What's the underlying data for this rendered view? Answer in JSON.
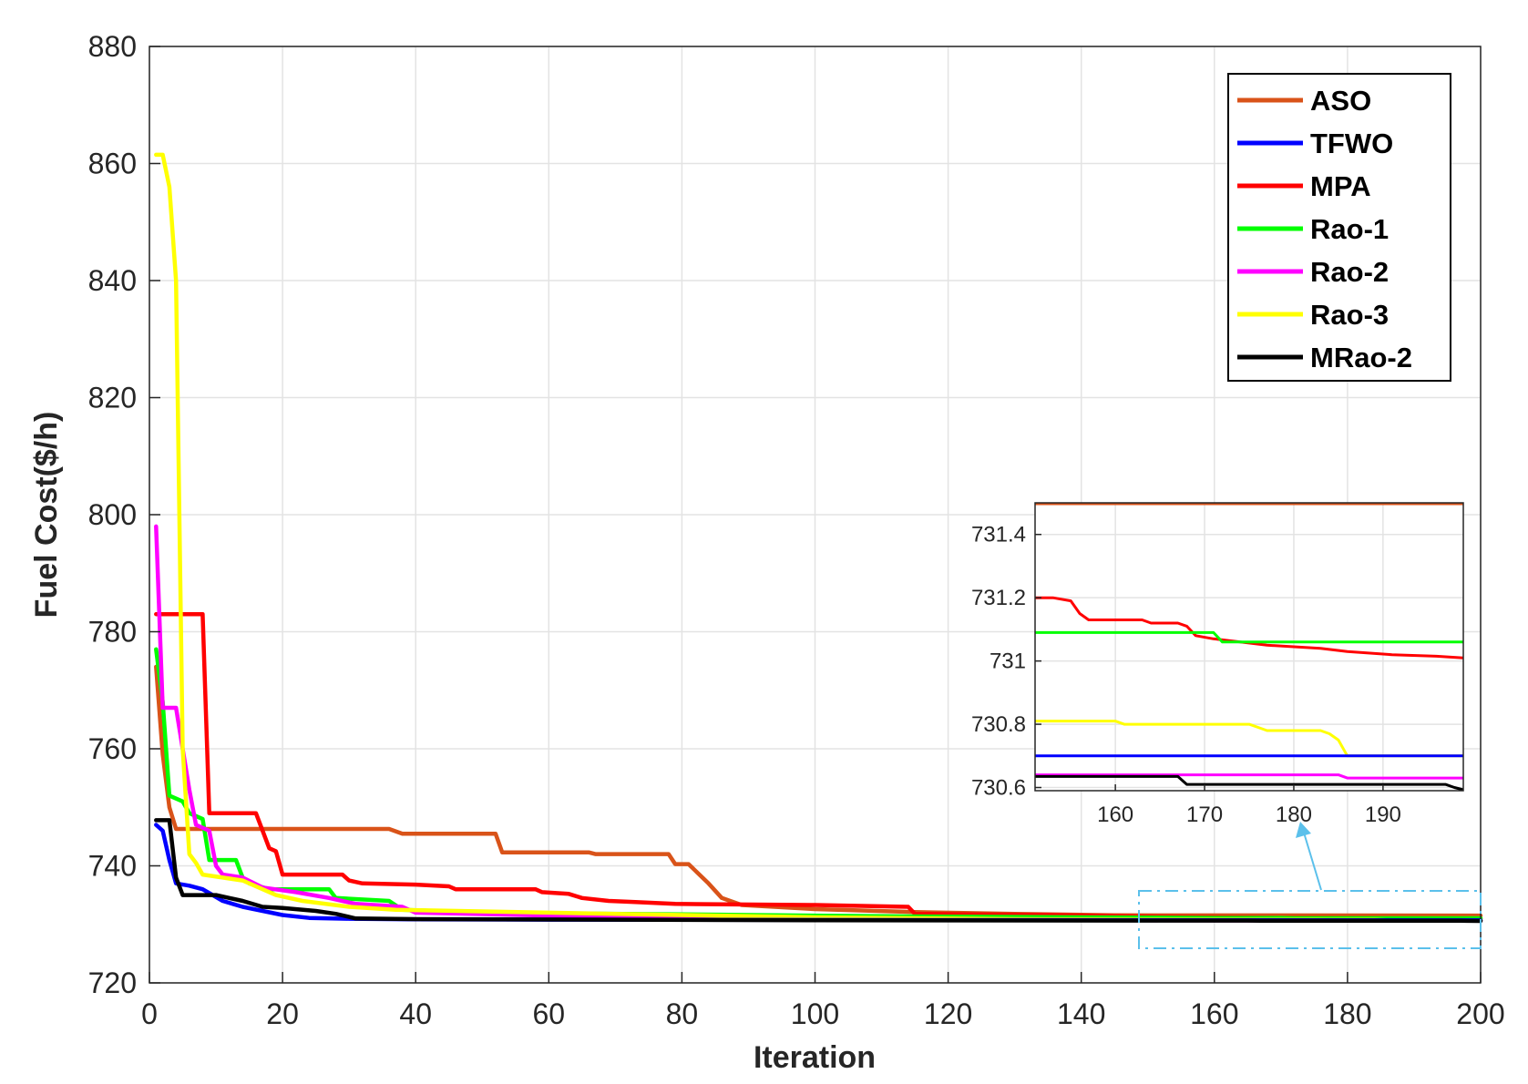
{
  "chart_data": {
    "type": "line",
    "xlabel": "Iteration",
    "ylabel": "Fuel Cost($/h)",
    "xlim": [
      0,
      200
    ],
    "ylim": [
      720,
      880
    ],
    "xticks": [
      0,
      20,
      40,
      60,
      80,
      100,
      120,
      140,
      160,
      180,
      200
    ],
    "yticks": [
      720,
      740,
      760,
      780,
      800,
      820,
      840,
      860,
      880
    ],
    "grid": true,
    "legend_position": "top-right",
    "series": [
      {
        "name": "ASO",
        "color": "#d95319",
        "points": [
          [
            1,
            774
          ],
          [
            2,
            759
          ],
          [
            3,
            750
          ],
          [
            4,
            746.3
          ],
          [
            20,
            746.3
          ],
          [
            36,
            746.3
          ],
          [
            38,
            745.5
          ],
          [
            52,
            745.5
          ],
          [
            53,
            742.3
          ],
          [
            66,
            742.3
          ],
          [
            67,
            742
          ],
          [
            78,
            742
          ],
          [
            79,
            740.3
          ],
          [
            81,
            740.3
          ],
          [
            84,
            737
          ],
          [
            86,
            734.5
          ],
          [
            89,
            733.3
          ],
          [
            100,
            732.6
          ],
          [
            115,
            732.1
          ],
          [
            130,
            731.8
          ],
          [
            145,
            731.55
          ],
          [
            200,
            731.5
          ]
        ]
      },
      {
        "name": "TFWO",
        "color": "#0000ff",
        "points": [
          [
            1,
            747
          ],
          [
            2,
            746
          ],
          [
            3,
            741
          ],
          [
            4,
            737
          ],
          [
            6,
            736.6
          ],
          [
            8,
            736
          ],
          [
            11,
            734
          ],
          [
            14,
            733
          ],
          [
            17,
            732.3
          ],
          [
            20,
            731.6
          ],
          [
            24,
            731.1
          ],
          [
            30,
            730.95
          ],
          [
            40,
            730.85
          ],
          [
            60,
            730.8
          ],
          [
            100,
            730.75
          ],
          [
            150,
            730.72
          ],
          [
            200,
            730.7
          ]
        ]
      },
      {
        "name": "MPA",
        "color": "#ff0000",
        "points": [
          [
            1,
            783
          ],
          [
            8,
            783
          ],
          [
            9,
            749
          ],
          [
            16,
            749
          ],
          [
            18,
            743
          ],
          [
            19,
            742.5
          ],
          [
            20,
            738.5
          ],
          [
            29,
            738.5
          ],
          [
            30,
            737.5
          ],
          [
            32,
            737
          ],
          [
            40,
            736.8
          ],
          [
            45,
            736.5
          ],
          [
            46,
            736
          ],
          [
            58,
            736
          ],
          [
            59,
            735.5
          ],
          [
            63,
            735.2
          ],
          [
            65,
            734.5
          ],
          [
            69,
            734
          ],
          [
            73,
            733.8
          ],
          [
            79,
            733.5
          ],
          [
            100,
            733.3
          ],
          [
            114,
            733
          ],
          [
            115,
            731.8
          ],
          [
            135,
            731.6
          ],
          [
            150,
            731.3
          ],
          [
            170,
            731.1
          ],
          [
            185,
            731.03
          ],
          [
            200,
            731
          ]
        ]
      },
      {
        "name": "Rao-1",
        "color": "#00ff00",
        "points": [
          [
            1,
            777
          ],
          [
            2,
            768
          ],
          [
            3,
            752
          ],
          [
            5,
            751
          ],
          [
            6,
            749
          ],
          [
            8,
            748
          ],
          [
            9,
            741
          ],
          [
            13,
            741
          ],
          [
            14,
            738
          ],
          [
            15,
            737
          ],
          [
            18,
            736
          ],
          [
            27,
            736
          ],
          [
            28,
            734.5
          ],
          [
            36,
            734
          ],
          [
            38,
            732.5
          ],
          [
            50,
            732
          ],
          [
            80,
            731.7
          ],
          [
            110,
            731.4
          ],
          [
            140,
            731.2
          ],
          [
            160,
            731.1
          ],
          [
            170,
            731.1
          ],
          [
            172,
            731.05
          ],
          [
            200,
            731.05
          ]
        ]
      },
      {
        "name": "Rao-2",
        "color": "#ff00ff",
        "points": [
          [
            1,
            798
          ],
          [
            2,
            767
          ],
          [
            4,
            767
          ],
          [
            6,
            753
          ],
          [
            7,
            747
          ],
          [
            9,
            746
          ],
          [
            10,
            740
          ],
          [
            11,
            738.5
          ],
          [
            14,
            738
          ],
          [
            17,
            736.3
          ],
          [
            22,
            735.5
          ],
          [
            27,
            734.5
          ],
          [
            31,
            733.5
          ],
          [
            38,
            733
          ],
          [
            40,
            732
          ],
          [
            60,
            731.5
          ],
          [
            100,
            731
          ],
          [
            150,
            730.7
          ],
          [
            186,
            730.65
          ],
          [
            187,
            730.63
          ],
          [
            200,
            730.63
          ]
        ]
      },
      {
        "name": "Rao-3",
        "color": "#ffff00",
        "points": [
          [
            1,
            861.5
          ],
          [
            2,
            861.5
          ],
          [
            3,
            856
          ],
          [
            4,
            840
          ],
          [
            5,
            760
          ],
          [
            6,
            742
          ],
          [
            7,
            740.5
          ],
          [
            8,
            738.5
          ],
          [
            11,
            738
          ],
          [
            14,
            737.5
          ],
          [
            19,
            735
          ],
          [
            23,
            734
          ],
          [
            30,
            733
          ],
          [
            37,
            732.5
          ],
          [
            70,
            731.8
          ],
          [
            100,
            731.2
          ],
          [
            130,
            730.9
          ],
          [
            150,
            730.81
          ],
          [
            175,
            730.8
          ],
          [
            177,
            730.78
          ],
          [
            184,
            730.78
          ],
          [
            186,
            730.7
          ],
          [
            200,
            730.7
          ]
        ]
      },
      {
        "name": "MRao-2",
        "color": "#000000",
        "points": [
          [
            1,
            747.8
          ],
          [
            3,
            747.8
          ],
          [
            4,
            738
          ],
          [
            5,
            735
          ],
          [
            8,
            735
          ],
          [
            10,
            735
          ],
          [
            14,
            734
          ],
          [
            17,
            733
          ],
          [
            20,
            732.8
          ],
          [
            25,
            732.3
          ],
          [
            28,
            731.8
          ],
          [
            31,
            731
          ],
          [
            40,
            730.9
          ],
          [
            100,
            730.7
          ],
          [
            150,
            730.65
          ],
          [
            165,
            730.64
          ],
          [
            167,
            730.61
          ],
          [
            180,
            730.61
          ],
          [
            197,
            730.61
          ],
          [
            198,
            730.6
          ],
          [
            200,
            730.59
          ]
        ]
      }
    ],
    "inset": {
      "xlim": [
        151,
        199
      ],
      "ylim": [
        730.59,
        731.5
      ],
      "xticks": [
        160,
        170,
        180,
        190
      ],
      "yticks": [
        730.6,
        730.8,
        731,
        731.2,
        731.4
      ],
      "series": [
        {
          "name": "ASO",
          "points": [
            [
              151,
              731.5
            ],
            [
              199,
              731.5
            ]
          ]
        },
        {
          "name": "TFWO",
          "points": [
            [
              151,
              730.7
            ],
            [
              199,
              730.7
            ]
          ]
        },
        {
          "name": "MPA",
          "points": [
            [
              151,
              731.2
            ],
            [
              153,
              731.2
            ],
            [
              155,
              731.19
            ],
            [
              156,
              731.15
            ],
            [
              157,
              731.13
            ],
            [
              163,
              731.13
            ],
            [
              164,
              731.12
            ],
            [
              167,
              731.12
            ],
            [
              168,
              731.11
            ],
            [
              169,
              731.08
            ],
            [
              171,
              731.07
            ],
            [
              174,
              731.06
            ],
            [
              177,
              731.05
            ],
            [
              183,
              731.04
            ],
            [
              186,
              731.03
            ],
            [
              191,
              731.02
            ],
            [
              196,
              731.015
            ],
            [
              199,
              731.01
            ]
          ]
        },
        {
          "name": "Rao-1",
          "points": [
            [
              151,
              731.09
            ],
            [
              171,
              731.09
            ],
            [
              172,
              731.06
            ],
            [
              199,
              731.06
            ]
          ]
        },
        {
          "name": "Rao-2",
          "points": [
            [
              151,
              730.64
            ],
            [
              185,
              730.64
            ],
            [
              186,
              730.63
            ],
            [
              199,
              730.63
            ]
          ]
        },
        {
          "name": "Rao-3",
          "points": [
            [
              151,
              730.81
            ],
            [
              160,
              730.81
            ],
            [
              161,
              730.8
            ],
            [
              175,
              730.8
            ],
            [
              176,
              730.79
            ],
            [
              177,
              730.78
            ],
            [
              183,
              730.78
            ],
            [
              184,
              730.77
            ],
            [
              185,
              730.75
            ],
            [
              186,
              730.7
            ],
            [
              199,
              730.7
            ]
          ]
        },
        {
          "name": "MRao-2",
          "points": [
            [
              151,
              730.635
            ],
            [
              167,
              730.635
            ],
            [
              168,
              730.61
            ],
            [
              197,
              730.61
            ],
            [
              198,
              730.6
            ],
            [
              199,
              730.59
            ]
          ]
        }
      ]
    }
  }
}
